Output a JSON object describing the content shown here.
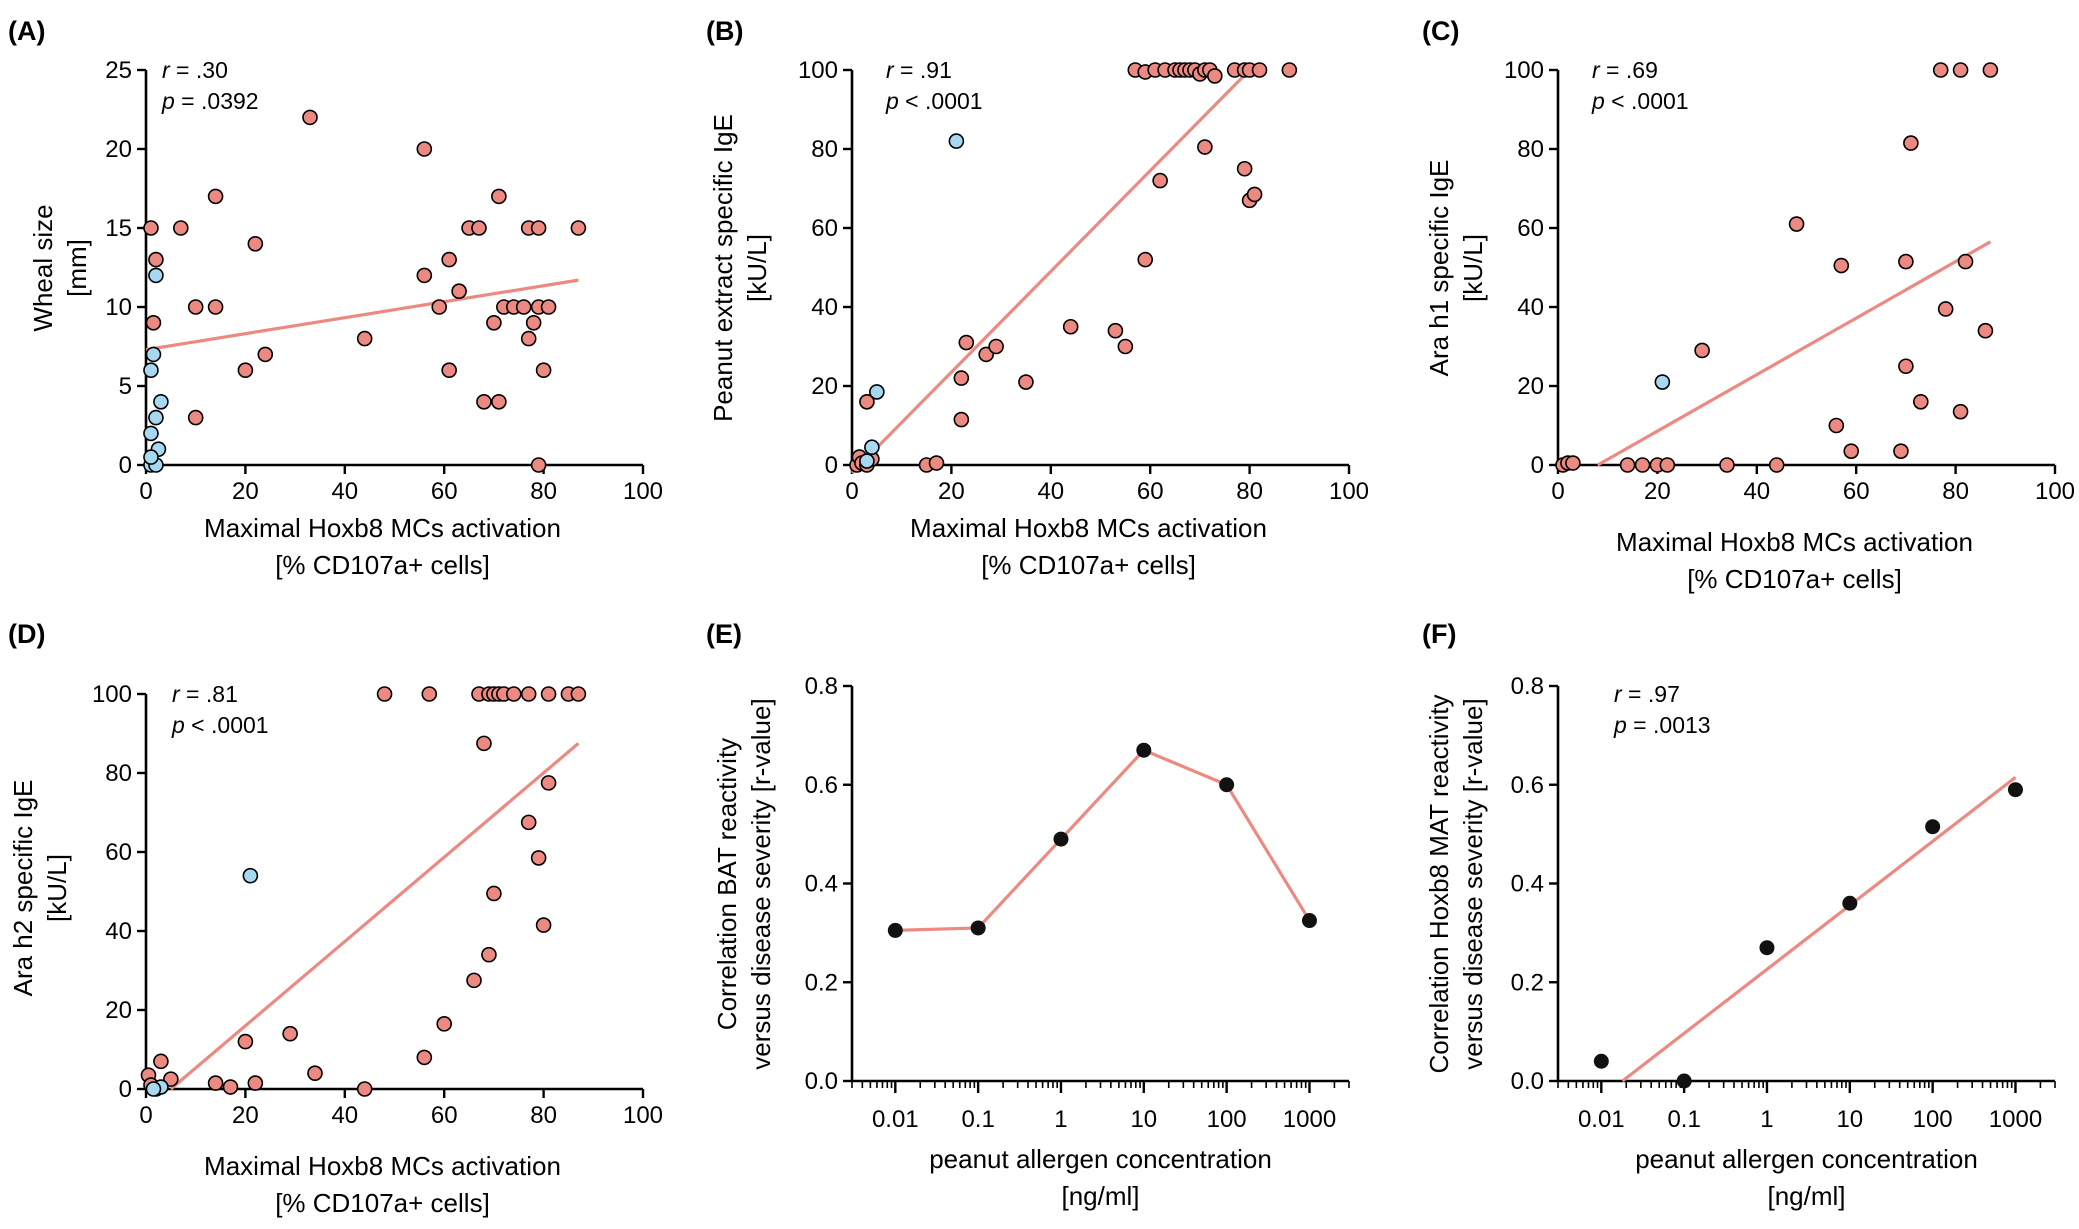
{
  "colors": {
    "pink": "#ec8a82",
    "blue": "#a7d8f2",
    "black": "#111111",
    "fit": "#ec8a82"
  },
  "chart_data": [
    {
      "panel": "(A)",
      "type": "scatter",
      "xlabel": [
        "Maximal Hoxb8 MCs activation",
        "[% CD107a+ cells]"
      ],
      "ylabel": [
        "Wheal size",
        "[mm]"
      ],
      "xlim": [
        0,
        100
      ],
      "ylim": [
        0,
        25
      ],
      "xticks": [
        "0",
        "20",
        "40",
        "60",
        "80",
        "100"
      ],
      "yticks": [
        "0",
        "5",
        "10",
        "15",
        "20",
        "25"
      ],
      "stats": {
        "r": ".30",
        "p": "= .0392"
      },
      "fit": [
        [
          0,
          7.3
        ],
        [
          87,
          11.7
        ]
      ],
      "series": [
        {
          "name": "pink",
          "points": [
            [
              1,
              15
            ],
            [
              2,
              13
            ],
            [
              1.5,
              9
            ],
            [
              7,
              15
            ],
            [
              10,
              10
            ],
            [
              10,
              3
            ],
            [
              14,
              17
            ],
            [
              14,
              10
            ],
            [
              20,
              6
            ],
            [
              22,
              14
            ],
            [
              24,
              7
            ],
            [
              33,
              22
            ],
            [
              44,
              8
            ],
            [
              56,
              20
            ],
            [
              56,
              12
            ],
            [
              59,
              10
            ],
            [
              61,
              13
            ],
            [
              61,
              6
            ],
            [
              63,
              11
            ],
            [
              65,
              15
            ],
            [
              67,
              15
            ],
            [
              68,
              4
            ],
            [
              70,
              9
            ],
            [
              71,
              17
            ],
            [
              71,
              4
            ],
            [
              72,
              10
            ],
            [
              74,
              10
            ],
            [
              76,
              10
            ],
            [
              77,
              15
            ],
            [
              77,
              8
            ],
            [
              78,
              9
            ],
            [
              79,
              15
            ],
            [
              79,
              10
            ],
            [
              80,
              6
            ],
            [
              81,
              10
            ],
            [
              79,
              0
            ],
            [
              87,
              15
            ]
          ]
        },
        {
          "name": "blue",
          "points": [
            [
              1,
              0
            ],
            [
              1,
              2
            ],
            [
              1,
              6
            ],
            [
              1.5,
              7
            ],
            [
              2,
              12
            ],
            [
              3,
              4
            ],
            [
              2,
              3
            ],
            [
              2.5,
              1
            ],
            [
              2,
              0
            ],
            [
              1,
              0.5
            ]
          ]
        }
      ]
    },
    {
      "panel": "(B)",
      "type": "scatter",
      "xlabel": [
        "Maximal Hoxb8 MCs activation",
        "[% CD107a+ cells]"
      ],
      "ylabel": [
        "Peanut extract specific IgE",
        "[kU/L]"
      ],
      "xlim": [
        0,
        100
      ],
      "ylim": [
        0,
        100
      ],
      "xticks": [
        "0",
        "20",
        "40",
        "60",
        "80",
        "100"
      ],
      "yticks": [
        "0",
        "20",
        "40",
        "60",
        "80",
        "100"
      ],
      "stats": {
        "r": ".91",
        "p": "< .0001"
      },
      "fit": [
        [
          0,
          -2
        ],
        [
          80,
          100
        ]
      ],
      "series": [
        {
          "name": "pink",
          "points": [
            [
              1,
              0
            ],
            [
              1.5,
              2
            ],
            [
              2,
              0.5
            ],
            [
              3,
              0
            ],
            [
              3,
              16
            ],
            [
              4,
              1.5
            ],
            [
              15,
              0
            ],
            [
              17,
              0.5
            ],
            [
              22,
              11.5
            ],
            [
              22,
              22
            ],
            [
              23,
              31
            ],
            [
              27,
              28
            ],
            [
              29,
              30
            ],
            [
              35,
              21
            ],
            [
              44,
              35
            ],
            [
              53,
              34
            ],
            [
              55,
              30
            ],
            [
              59,
              52
            ],
            [
              62,
              72
            ],
            [
              71,
              80.5
            ],
            [
              79,
              75
            ],
            [
              80,
              67
            ],
            [
              81,
              68.5
            ],
            [
              57,
              100
            ],
            [
              59,
              99.5
            ],
            [
              61,
              100
            ],
            [
              63,
              100
            ],
            [
              65,
              100
            ],
            [
              66,
              100
            ],
            [
              67,
              100
            ],
            [
              68,
              100
            ],
            [
              69,
              100
            ],
            [
              70,
              99
            ],
            [
              71,
              100
            ],
            [
              72,
              100
            ],
            [
              73,
              98.5
            ],
            [
              77,
              100
            ],
            [
              79,
              100
            ],
            [
              80,
              100
            ],
            [
              82,
              100
            ],
            [
              88,
              100
            ]
          ]
        },
        {
          "name": "blue",
          "points": [
            [
              21,
              82
            ],
            [
              5,
              18.5
            ],
            [
              4,
              4.5
            ],
            [
              3,
              1
            ]
          ]
        }
      ]
    },
    {
      "panel": "(C)",
      "type": "scatter",
      "xlabel": [
        "Maximal Hoxb8 MCs activation",
        "[% CD107a+ cells]"
      ],
      "ylabel": [
        "Ara h1 specific IgE",
        "[kU/L]"
      ],
      "xlim": [
        0,
        100
      ],
      "ylim": [
        0,
        100
      ],
      "xticks": [
        "0",
        "20",
        "40",
        "60",
        "80",
        "100"
      ],
      "yticks": [
        "0",
        "20",
        "40",
        "60",
        "80",
        "100"
      ],
      "stats": {
        "r": ".69",
        "p": "< .0001"
      },
      "fit": [
        [
          8,
          0
        ],
        [
          87,
          56.5
        ]
      ],
      "series": [
        {
          "name": "pink",
          "points": [
            [
              1,
              0
            ],
            [
              2,
              0.5
            ],
            [
              3,
              0.5
            ],
            [
              14,
              0
            ],
            [
              17,
              0
            ],
            [
              20,
              0
            ],
            [
              22,
              0
            ],
            [
              34,
              0
            ],
            [
              44,
              0
            ],
            [
              29,
              29
            ],
            [
              48,
              61
            ],
            [
              56,
              10
            ],
            [
              57,
              50.5
            ],
            [
              59,
              3.5
            ],
            [
              69,
              3.5
            ],
            [
              70,
              51.5
            ],
            [
              70,
              25
            ],
            [
              71,
              81.5
            ],
            [
              73,
              16
            ],
            [
              77,
              100
            ],
            [
              78,
              39.5
            ],
            [
              81,
              100
            ],
            [
              81,
              13.5
            ],
            [
              82,
              51.5
            ],
            [
              86,
              34
            ],
            [
              87,
              100
            ]
          ]
        },
        {
          "name": "blue",
          "points": [
            [
              21,
              21
            ]
          ]
        }
      ]
    },
    {
      "panel": "(D)",
      "type": "scatter",
      "xlabel": [
        "Maximal Hoxb8 MCs activation",
        "[% CD107a+ cells]"
      ],
      "ylabel": [
        "Ara h2 specific IgE",
        "[kU/L]"
      ],
      "xlim": [
        0,
        100
      ],
      "ylim": [
        0,
        100
      ],
      "xticks": [
        "0",
        "20",
        "40",
        "60",
        "80",
        "100"
      ],
      "yticks": [
        "0",
        "20",
        "40",
        "60",
        "80",
        "100"
      ],
      "stats": {
        "r": ".81",
        "p": "< .0001"
      },
      "fit": [
        [
          5,
          0
        ],
        [
          87,
          87.5
        ]
      ],
      "series": [
        {
          "name": "pink",
          "points": [
            [
              0.5,
              3.5
            ],
            [
              1,
              1
            ],
            [
              2,
              0
            ],
            [
              3,
              7
            ],
            [
              5,
              2.5
            ],
            [
              14,
              1.5
            ],
            [
              17,
              0.5
            ],
            [
              20,
              12
            ],
            [
              22,
              1.5
            ],
            [
              29,
              14
            ],
            [
              34,
              4
            ],
            [
              44,
              0
            ],
            [
              48,
              100
            ],
            [
              56,
              8
            ],
            [
              57,
              100
            ],
            [
              60,
              16.5
            ],
            [
              66,
              27.5
            ],
            [
              67,
              100
            ],
            [
              68,
              87.5
            ],
            [
              69,
              100
            ],
            [
              69,
              34
            ],
            [
              70,
              49.5
            ],
            [
              70,
              100
            ],
            [
              71,
              100
            ],
            [
              72,
              100
            ],
            [
              74,
              100
            ],
            [
              77,
              100
            ],
            [
              77,
              67.5
            ],
            [
              79,
              58.5
            ],
            [
              80,
              41.5
            ],
            [
              81,
              77.5
            ],
            [
              81,
              100
            ],
            [
              85,
              100
            ],
            [
              87,
              100
            ]
          ]
        },
        {
          "name": "blue",
          "points": [
            [
              21,
              54
            ],
            [
              3,
              0.5
            ],
            [
              1.5,
              0
            ]
          ]
        }
      ]
    },
    {
      "panel": "(E)",
      "type": "line",
      "xscale": "log",
      "xlabel": [
        "peanut allergen concentration",
        "[ng/ml]"
      ],
      "ylabel": [
        "Correlation BAT reactivity",
        "versus disease severity [r-value]"
      ],
      "xlim": [
        0.003,
        3000
      ],
      "ylim": [
        0,
        0.8
      ],
      "xticks": [
        "0.01",
        "0.1",
        "1",
        "10",
        "100",
        "1000"
      ],
      "yticks": [
        "0.0",
        "0.2",
        "0.4",
        "0.6",
        "0.8"
      ],
      "x": [
        0.01,
        0.1,
        1,
        10,
        100,
        1000
      ],
      "y": [
        0.305,
        0.31,
        0.49,
        0.67,
        0.6,
        0.325
      ]
    },
    {
      "panel": "(F)",
      "type": "scatter",
      "xscale": "log",
      "xlabel": [
        "peanut allergen concentration",
        "[ng/ml]"
      ],
      "ylabel": [
        "Correlation Hoxb8 MAT reactivity",
        "versus disease severity [r-value]"
      ],
      "xlim": [
        0.003,
        3000
      ],
      "ylim": [
        0,
        0.8
      ],
      "xticks": [
        "0.01",
        "0.1",
        "1",
        "10",
        "100",
        "1000"
      ],
      "yticks": [
        "0.0",
        "0.2",
        "0.4",
        "0.6",
        "0.8"
      ],
      "stats": {
        "r": ".97",
        "p": "= .0013"
      },
      "x": [
        0.01,
        0.1,
        1,
        10,
        100,
        1000
      ],
      "y": [
        0.04,
        0.0,
        0.27,
        0.36,
        0.515,
        0.59
      ],
      "fit": [
        [
          0.018,
          0
        ],
        [
          1000,
          0.615
        ]
      ]
    }
  ]
}
